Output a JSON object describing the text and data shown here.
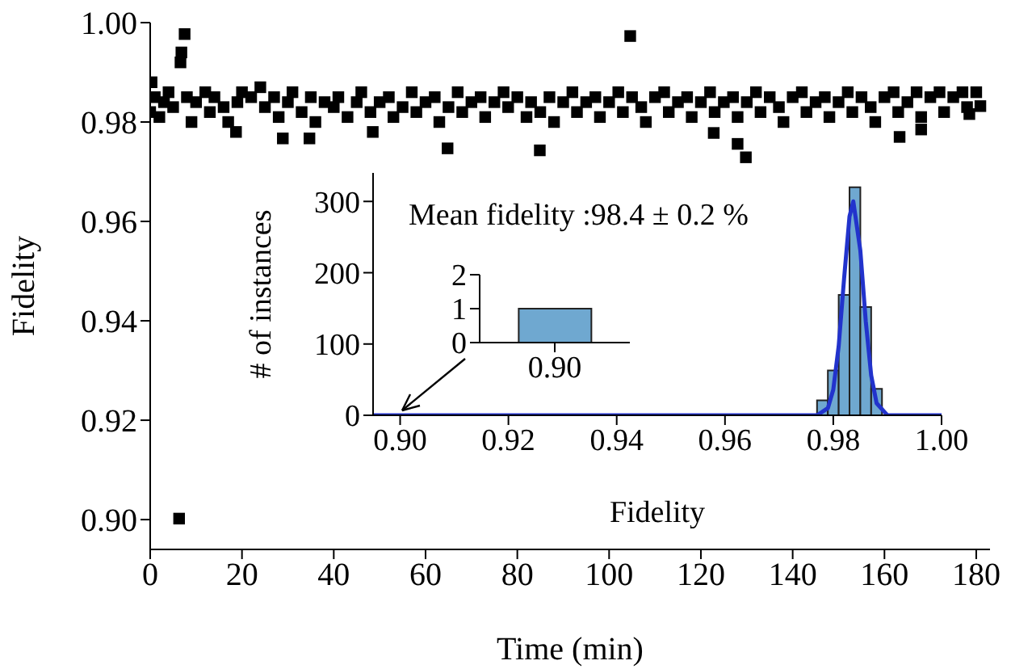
{
  "chart_data": [
    {
      "type": "scatter",
      "xlabel": "Time (min)",
      "ylabel": "Fidelity",
      "color": "#000000",
      "marker": "square",
      "x": [
        0,
        1,
        2,
        3,
        4,
        5,
        8,
        9,
        10,
        12,
        13,
        14,
        16,
        17,
        19,
        20,
        22,
        24,
        25,
        27,
        28,
        30,
        31,
        33,
        35,
        36,
        38,
        40,
        41,
        43,
        45,
        46,
        48,
        50,
        52,
        53,
        55,
        57,
        58,
        60,
        62,
        63,
        65,
        67,
        68,
        70,
        72,
        73,
        75,
        77,
        78,
        80,
        82,
        83,
        85,
        87,
        88,
        90,
        92,
        93,
        95,
        97,
        98,
        100,
        102,
        103,
        105,
        107,
        108,
        110,
        112,
        113,
        115,
        117,
        118,
        120,
        122,
        123,
        125,
        127,
        128,
        130,
        132,
        133,
        135,
        137,
        138,
        140,
        142,
        143,
        145,
        147,
        148,
        150,
        152,
        153,
        155,
        157,
        158,
        160,
        162,
        163,
        165,
        167,
        168,
        170,
        172,
        173,
        175,
        177,
        178,
        180,
        7.5,
        6.8,
        6.6,
        0.3,
        18.7,
        64.8,
        84.9,
        28.9,
        34.7,
        48.5,
        104.6,
        129.8,
        128,
        122.8,
        163.3,
        168,
        180.9,
        178.5,
        6.3
      ],
      "values": [
        0.982,
        0.985,
        0.981,
        0.984,
        0.986,
        0.983,
        0.985,
        0.98,
        0.984,
        0.986,
        0.982,
        0.985,
        0.983,
        0.98,
        0.984,
        0.986,
        0.985,
        0.987,
        0.983,
        0.985,
        0.981,
        0.984,
        0.986,
        0.982,
        0.985,
        0.98,
        0.984,
        0.983,
        0.985,
        0.981,
        0.984,
        0.986,
        0.982,
        0.984,
        0.985,
        0.981,
        0.983,
        0.986,
        0.982,
        0.984,
        0.985,
        0.98,
        0.983,
        0.986,
        0.982,
        0.984,
        0.985,
        0.981,
        0.984,
        0.986,
        0.983,
        0.985,
        0.981,
        0.984,
        0.982,
        0.985,
        0.98,
        0.984,
        0.986,
        0.982,
        0.984,
        0.985,
        0.981,
        0.984,
        0.986,
        0.982,
        0.985,
        0.983,
        0.98,
        0.985,
        0.986,
        0.982,
        0.984,
        0.985,
        0.981,
        0.984,
        0.986,
        0.982,
        0.984,
        0.985,
        0.981,
        0.984,
        0.986,
        0.982,
        0.985,
        0.983,
        0.98,
        0.985,
        0.986,
        0.982,
        0.984,
        0.985,
        0.981,
        0.984,
        0.986,
        0.982,
        0.985,
        0.983,
        0.98,
        0.985,
        0.986,
        0.982,
        0.984,
        0.986,
        0.981,
        0.985,
        0.986,
        0.982,
        0.985,
        0.986,
        0.983,
        0.986,
        0.9977,
        0.994,
        0.992,
        0.988,
        0.978,
        0.9747,
        0.9743,
        0.9767,
        0.9767,
        0.978,
        0.9973,
        0.9729,
        0.9756,
        0.9778,
        0.977,
        0.9785,
        0.9832,
        0.9816,
        0.9002
      ],
      "xlim": [
        0,
        183
      ],
      "ylim": [
        0.894,
        1.0
      ],
      "xticks": [
        0,
        20,
        40,
        60,
        80,
        100,
        120,
        140,
        160,
        180
      ],
      "yticks": [
        {
          "value": 0.9,
          "label": "0.90"
        },
        {
          "value": 0.92,
          "label": "0.92"
        },
        {
          "value": 0.94,
          "label": "0.94"
        },
        {
          "value": 0.96,
          "label": "0.96"
        },
        {
          "value": 0.98,
          "label": "0.98"
        },
        {
          "value": 1.0,
          "label": "1.00"
        }
      ]
    },
    {
      "type": "histogram",
      "xlabel": "Fidelity",
      "ylabel": "# of instances",
      "annotations": [
        "Mean fidelity :98.4 ± 0.2 %"
      ],
      "bins": [
        0.899,
        0.901,
        0.903,
        0.905,
        0.907,
        0.909,
        0.911,
        0.913,
        0.915,
        0.917,
        0.919,
        0.921,
        0.923,
        0.925,
        0.927,
        0.929,
        0.931,
        0.933,
        0.935,
        0.937,
        0.939,
        0.941,
        0.943,
        0.945,
        0.947,
        0.949,
        0.951,
        0.953,
        0.955,
        0.957,
        0.959,
        0.961,
        0.963,
        0.965,
        0.967,
        0.969,
        0.971,
        0.973,
        0.975,
        0.977,
        0.979,
        0.981,
        0.983,
        0.985,
        0.987,
        0.989
      ],
      "series": [
        {
          "type": "histogram",
          "color": "#6fa8d0",
          "values": [
            1,
            0,
            0,
            0,
            0,
            0,
            0,
            0,
            0,
            0,
            0,
            0,
            0,
            0,
            0,
            0,
            0,
            0,
            0,
            0,
            0,
            0,
            0,
            0,
            0,
            0,
            0,
            0,
            0,
            0,
            0,
            0,
            0,
            0,
            0,
            0,
            0,
            0,
            null,
            21,
            63,
            169,
            320,
            152,
            37
          ]
        },
        {
          "type": "line",
          "color": "#2233cc",
          "x": [
            0.895,
            0.97,
            0.977,
            0.979,
            0.98,
            0.981,
            0.982,
            0.983,
            0.9837,
            0.985,
            0.986,
            0.987,
            0.988,
            0.99,
            1.0
          ],
          "values": [
            0,
            0,
            0,
            10,
            36,
            97,
            192,
            279,
            300,
            231,
            132,
            56,
            17,
            0,
            0
          ]
        }
      ],
      "xlim": [
        0.895,
        1.0
      ],
      "ylim": [
        0,
        340
      ],
      "xticks": [
        {
          "value": 0.9,
          "label": "0.90"
        },
        {
          "value": 0.92,
          "label": "0.92"
        },
        {
          "value": 0.94,
          "label": "0.94"
        },
        {
          "value": 0.96,
          "label": "0.96"
        },
        {
          "value": 0.98,
          "label": "0.98"
        },
        {
          "value": 1.0,
          "label": "1.00"
        }
      ],
      "yticks": [
        0,
        100,
        200,
        300
      ]
    },
    {
      "type": "bar",
      "categories": [
        "0.90"
      ],
      "color": "#6fa8d0",
      "values": [
        1
      ],
      "ylim": [
        0,
        2
      ],
      "yticks": [
        0,
        1,
        2
      ]
    }
  ]
}
